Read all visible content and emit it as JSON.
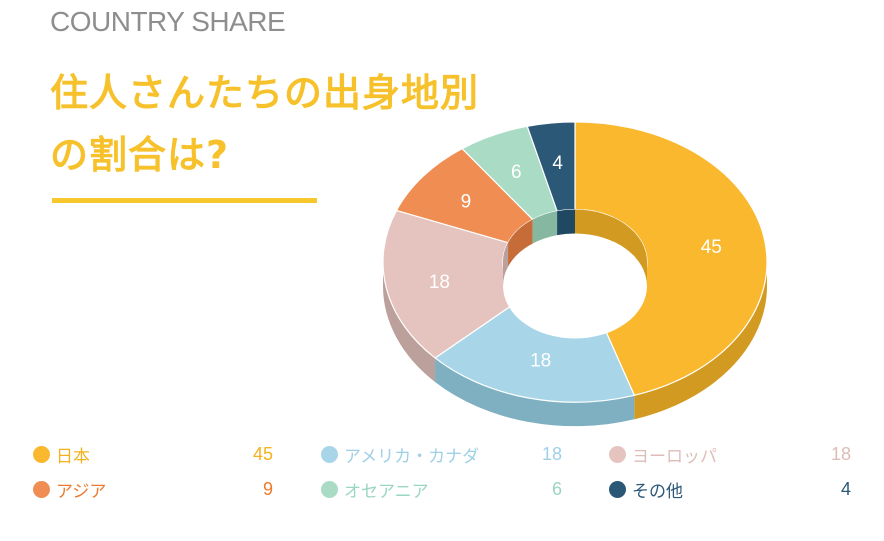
{
  "header": {
    "eyebrow": "COUNTRY SHARE",
    "title_line1": "住人さんたちの出身地別",
    "title_line2": "の割合は?"
  },
  "colors": {
    "title": "#f6c12a",
    "rule": "#f6c82d"
  },
  "chart_data": {
    "type": "pie",
    "style": "3d-donut",
    "categories": [
      "日本",
      "アメリカ・カナダ",
      "ヨーロッパ",
      "アジア",
      "オセアニア",
      "その他"
    ],
    "values": [
      45,
      18,
      18,
      9,
      6,
      4
    ],
    "colors": [
      "#f9b82e",
      "#a8d6e8",
      "#e5c4bf",
      "#ef8d53",
      "#a9dbc5",
      "#2c5878"
    ],
    "side_colors": [
      "#d39a21",
      "#7fb0c2",
      "#bba09b",
      "#c56c38",
      "#86b7a1",
      "#204863"
    ],
    "text_colors": [
      "#f4b21f",
      "#9fd0e6",
      "#ddbdb8",
      "#ec7a2c",
      "#9bd6bf",
      "#2c5878"
    ],
    "legend": [
      {
        "label": "日本",
        "value": "45"
      },
      {
        "label": "アジア",
        "value": "9"
      },
      {
        "label": "アメリカ・カナダ",
        "value": "18"
      },
      {
        "label": "オセアニア",
        "value": "6"
      },
      {
        "label": "ヨーロッパ",
        "value": "18"
      },
      {
        "label": "その他",
        "value": "4"
      }
    ],
    "legend_placement": "bottom"
  }
}
